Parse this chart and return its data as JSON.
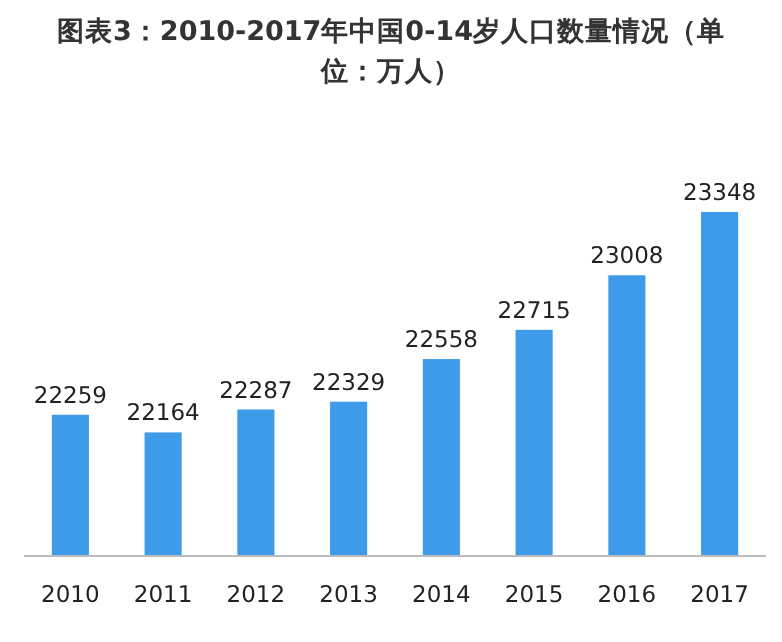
{
  "chart_data": {
    "type": "bar",
    "title": "图表3：2010-2017年中国0-14岁人口数量情况（单位：万人）",
    "categories": [
      "2010",
      "2011",
      "2012",
      "2013",
      "2014",
      "2015",
      "2016",
      "2017"
    ],
    "values": [
      22259,
      22164,
      22287,
      22329,
      22558,
      22715,
      23008,
      23348
    ],
    "color": "#3d9be9",
    "ylim": [
      21500,
      23348
    ],
    "data_labels": true,
    "tick_labels": "x"
  }
}
